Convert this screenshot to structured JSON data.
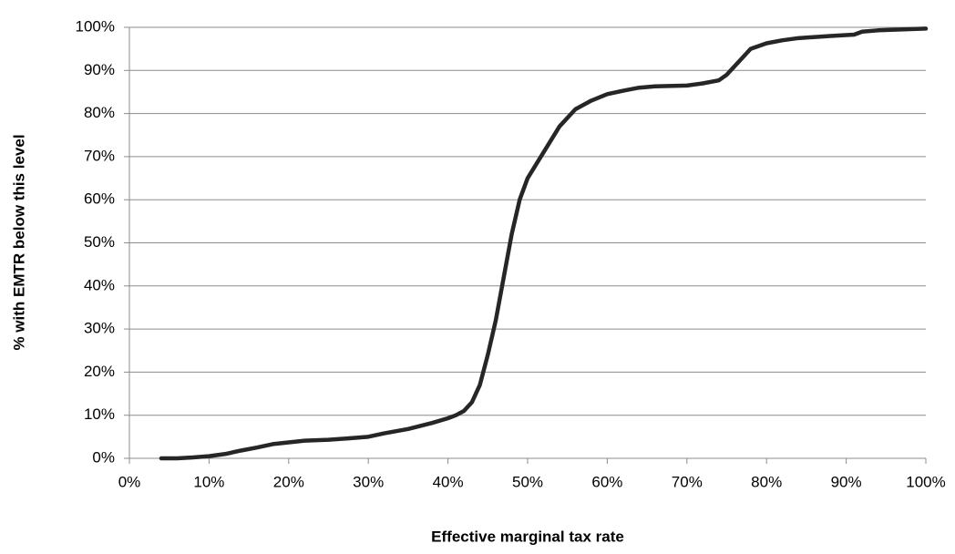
{
  "chart_data": {
    "type": "line",
    "x_label": "Effective marginal tax rate",
    "y_label": "% with EMTR below this level",
    "xlim": [
      0,
      100
    ],
    "ylim": [
      0,
      100
    ],
    "xticks": [
      {
        "value": 0,
        "label": "0%"
      },
      {
        "value": 10,
        "label": "10%"
      },
      {
        "value": 20,
        "label": "20%"
      },
      {
        "value": 30,
        "label": "30%"
      },
      {
        "value": 40,
        "label": "40%"
      },
      {
        "value": 50,
        "label": "50%"
      },
      {
        "value": 60,
        "label": "60%"
      },
      {
        "value": 70,
        "label": "70%"
      },
      {
        "value": 80,
        "label": "80%"
      },
      {
        "value": 90,
        "label": "90%"
      },
      {
        "value": 100,
        "label": "100%"
      }
    ],
    "yticks": [
      {
        "value": 0,
        "label": "0%"
      },
      {
        "value": 10,
        "label": "10%"
      },
      {
        "value": 20,
        "label": "20%"
      },
      {
        "value": 30,
        "label": "30%"
      },
      {
        "value": 40,
        "label": "40%"
      },
      {
        "value": 50,
        "label": "50%"
      },
      {
        "value": 60,
        "label": "60%"
      },
      {
        "value": 70,
        "label": "70%"
      },
      {
        "value": 80,
        "label": "80%"
      },
      {
        "value": 90,
        "label": "90%"
      },
      {
        "value": 100,
        "label": "100%"
      }
    ],
    "grid": true,
    "series": [
      {
        "color": "#262626",
        "x": [
          4,
          6,
          8,
          10,
          12,
          14,
          16,
          18,
          20,
          22,
          25,
          28,
          30,
          32,
          35,
          38,
          40,
          41,
          42,
          43,
          44,
          45,
          46,
          47,
          48,
          49,
          50,
          52,
          54,
          56,
          58,
          60,
          62,
          64,
          66,
          70,
          72,
          74,
          75,
          76,
          77,
          78,
          80,
          82,
          84,
          88,
          91,
          92,
          94,
          100
        ],
        "values": [
          0,
          0,
          0.2,
          0.5,
          1,
          1.8,
          2.5,
          3.3,
          3.7,
          4.1,
          4.3,
          4.7,
          5,
          5.8,
          6.8,
          8.2,
          9.3,
          10,
          11,
          13,
          17,
          24,
          32,
          42,
          52,
          60,
          65,
          71,
          77,
          81,
          83,
          84.5,
          85.3,
          86,
          86.3,
          86.5,
          87,
          87.7,
          89,
          91,
          93,
          95,
          96.3,
          97,
          97.5,
          98,
          98.3,
          99,
          99.3,
          99.7
        ]
      }
    ]
  }
}
